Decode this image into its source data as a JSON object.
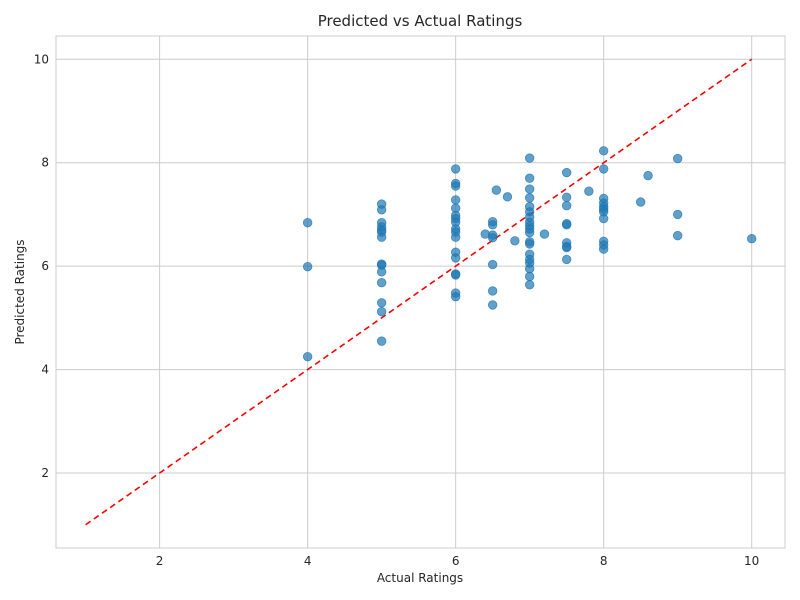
{
  "chart_data": {
    "type": "scatter",
    "title": "Predicted vs Actual Ratings",
    "xlabel": "Actual Ratings",
    "ylabel": "Predicted Ratings",
    "xlim": [
      0.6,
      10.45
    ],
    "ylim": [
      0.55,
      10.45
    ],
    "xticks": [
      2,
      4,
      6,
      8,
      10
    ],
    "yticks": [
      2,
      4,
      6,
      8,
      10
    ],
    "grid": true,
    "point_color": "#1f77b4",
    "reference_line": {
      "x": [
        1,
        10
      ],
      "y": [
        1,
        10
      ],
      "color": "#ff0000",
      "style": "dashed"
    },
    "points": [
      {
        "x": 4,
        "y": 6.84
      },
      {
        "x": 4,
        "y": 5.99
      },
      {
        "x": 4,
        "y": 4.25
      },
      {
        "x": 5,
        "y": 7.2
      },
      {
        "x": 5,
        "y": 7.09
      },
      {
        "x": 5,
        "y": 6.84
      },
      {
        "x": 5,
        "y": 6.76
      },
      {
        "x": 5,
        "y": 6.7
      },
      {
        "x": 5,
        "y": 6.66
      },
      {
        "x": 5,
        "y": 6.56
      },
      {
        "x": 5,
        "y": 6.04
      },
      {
        "x": 5,
        "y": 6.02
      },
      {
        "x": 5,
        "y": 5.89
      },
      {
        "x": 5,
        "y": 5.68
      },
      {
        "x": 5,
        "y": 5.29
      },
      {
        "x": 5,
        "y": 5.12
      },
      {
        "x": 5,
        "y": 4.55
      },
      {
        "x": 6,
        "y": 7.88
      },
      {
        "x": 6,
        "y": 7.6
      },
      {
        "x": 6,
        "y": 7.55
      },
      {
        "x": 6,
        "y": 7.28
      },
      {
        "x": 6,
        "y": 7.12
      },
      {
        "x": 6,
        "y": 6.98
      },
      {
        "x": 6,
        "y": 6.92
      },
      {
        "x": 6,
        "y": 6.85
      },
      {
        "x": 6,
        "y": 6.72
      },
      {
        "x": 6,
        "y": 6.66
      },
      {
        "x": 6,
        "y": 6.56
      },
      {
        "x": 6,
        "y": 6.27
      },
      {
        "x": 6,
        "y": 6.16
      },
      {
        "x": 6,
        "y": 5.85
      },
      {
        "x": 6,
        "y": 5.83
      },
      {
        "x": 6,
        "y": 5.48
      },
      {
        "x": 6,
        "y": 5.41
      },
      {
        "x": 6.4,
        "y": 6.62
      },
      {
        "x": 6.5,
        "y": 6.86
      },
      {
        "x": 6.5,
        "y": 6.8
      },
      {
        "x": 6.5,
        "y": 6.6
      },
      {
        "x": 6.5,
        "y": 6.55
      },
      {
        "x": 6.5,
        "y": 6.03
      },
      {
        "x": 6.5,
        "y": 5.52
      },
      {
        "x": 6.5,
        "y": 5.25
      },
      {
        "x": 6.55,
        "y": 7.47
      },
      {
        "x": 6.7,
        "y": 7.34
      },
      {
        "x": 6.8,
        "y": 6.49
      },
      {
        "x": 7,
        "y": 8.09
      },
      {
        "x": 7,
        "y": 7.7
      },
      {
        "x": 7,
        "y": 7.49
      },
      {
        "x": 7,
        "y": 7.32
      },
      {
        "x": 7,
        "y": 7.15
      },
      {
        "x": 7,
        "y": 7.05
      },
      {
        "x": 7,
        "y": 6.95
      },
      {
        "x": 7,
        "y": 6.85
      },
      {
        "x": 7,
        "y": 6.78
      },
      {
        "x": 7,
        "y": 6.72
      },
      {
        "x": 7,
        "y": 6.65
      },
      {
        "x": 7,
        "y": 6.47
      },
      {
        "x": 7,
        "y": 6.43
      },
      {
        "x": 7,
        "y": 6.23
      },
      {
        "x": 7,
        "y": 6.13
      },
      {
        "x": 7,
        "y": 6.06
      },
      {
        "x": 7,
        "y": 5.95
      },
      {
        "x": 7,
        "y": 5.8
      },
      {
        "x": 7,
        "y": 5.64
      },
      {
        "x": 7.2,
        "y": 6.62
      },
      {
        "x": 7.5,
        "y": 7.81
      },
      {
        "x": 7.5,
        "y": 7.33
      },
      {
        "x": 7.5,
        "y": 7.17
      },
      {
        "x": 7.5,
        "y": 6.82
      },
      {
        "x": 7.5,
        "y": 6.8
      },
      {
        "x": 7.5,
        "y": 6.45
      },
      {
        "x": 7.5,
        "y": 6.38
      },
      {
        "x": 7.5,
        "y": 6.36
      },
      {
        "x": 7.5,
        "y": 6.13
      },
      {
        "x": 7.8,
        "y": 7.45
      },
      {
        "x": 8,
        "y": 8.23
      },
      {
        "x": 8,
        "y": 7.88
      },
      {
        "x": 8,
        "y": 7.31
      },
      {
        "x": 8,
        "y": 7.22
      },
      {
        "x": 8,
        "y": 7.15
      },
      {
        "x": 8,
        "y": 7.1
      },
      {
        "x": 8,
        "y": 7.05
      },
      {
        "x": 8,
        "y": 6.92
      },
      {
        "x": 8,
        "y": 6.48
      },
      {
        "x": 8,
        "y": 6.41
      },
      {
        "x": 8,
        "y": 6.33
      },
      {
        "x": 8.5,
        "y": 7.24
      },
      {
        "x": 8.6,
        "y": 7.75
      },
      {
        "x": 9,
        "y": 8.08
      },
      {
        "x": 9,
        "y": 7.0
      },
      {
        "x": 9,
        "y": 6.59
      },
      {
        "x": 10,
        "y": 6.53
      }
    ]
  }
}
